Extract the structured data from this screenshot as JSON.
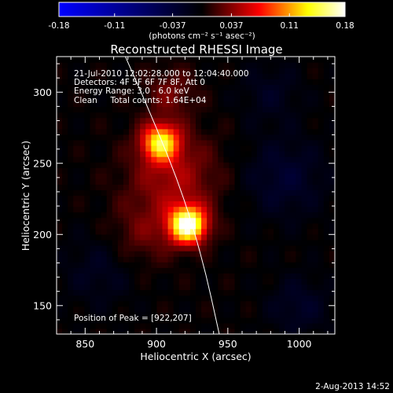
{
  "chart_data": {
    "type": "heatmap",
    "title": "Reconstructed RHESSI Image",
    "xlabel": "Heliocentric X (arcsec)",
    "ylabel": "Heliocentric Y (arcsec)",
    "xlim": [
      830,
      1025
    ],
    "ylim": [
      130,
      325
    ],
    "x_ticks": [
      850,
      900,
      950,
      1000
    ],
    "y_ticks": [
      150,
      200,
      250,
      300
    ],
    "colorbar": {
      "range": [
        -0.18,
        0.18
      ],
      "ticks": [
        "-0.18",
        "-0.11",
        "-0.037",
        "0.037",
        "0.11",
        "0.18"
      ],
      "tick_values": [
        -0.18,
        -0.11,
        -0.037,
        0.037,
        0.11,
        0.18
      ],
      "label": "(photons cm⁻² s⁻¹ asec⁻²)",
      "colormap": [
        "#0000ff",
        "#000000",
        "#ff0000",
        "#ffff00",
        "#ffffff"
      ]
    },
    "annotations": [
      "21-Jul-2010 12:02:28.000 to 12:04:40.000",
      "Detectors: 4F 5F 6F 7F 8F, Att 0",
      "Energy Range: 3.0 - 6.0 keV",
      "Clean     Total counts: 1.64E+04"
    ],
    "peak_label": "Position of Peak = [922,207]",
    "peak": [
      922,
      207
    ],
    "sources": [
      {
        "x": 922,
        "y": 207,
        "sigma": 9,
        "amplitude": 0.18
      },
      {
        "x": 903,
        "y": 265,
        "sigma": 9,
        "amplitude": 0.13
      },
      {
        "x": 912,
        "y": 240,
        "sigma": 22,
        "amplitude": 0.045
      },
      {
        "x": 910,
        "y": 300,
        "sigma": 12,
        "amplitude": 0.03
      },
      {
        "x": 890,
        "y": 200,
        "sigma": 16,
        "amplitude": 0.025
      },
      {
        "x": 860,
        "y": 175,
        "sigma": 18,
        "amplitude": -0.02
      },
      {
        "x": 990,
        "y": 240,
        "sigma": 20,
        "amplitude": -0.03
      },
      {
        "x": 1000,
        "y": 150,
        "sigma": 15,
        "amplitude": -0.025
      },
      {
        "x": 980,
        "y": 300,
        "sigma": 15,
        "amplitude": -0.02
      }
    ],
    "limb_curve": [
      [
        876,
        330
      ],
      [
        898,
        280
      ],
      [
        918,
        230
      ],
      [
        933,
        180
      ],
      [
        944,
        130
      ]
    ]
  },
  "timestamp": "2-Aug-2013 14:52"
}
